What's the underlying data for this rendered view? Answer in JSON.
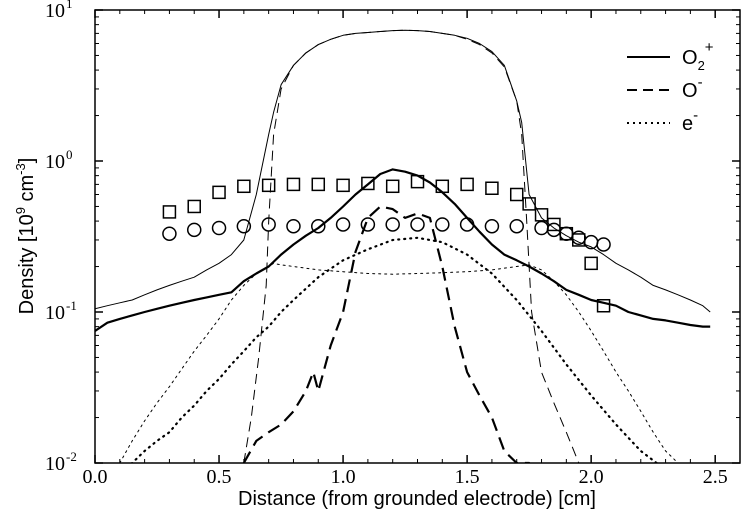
{
  "chart_data": {
    "type": "line",
    "title": "",
    "xlabel": "Distance (from grounded electrode) [cm]",
    "ylabel": {
      "prefix": "Density [10",
      "exp": "9",
      "unit": " cm",
      "unit_exp": "-3",
      "suffix": "]"
    },
    "xlim": [
      0,
      2.6
    ],
    "ylim": [
      0.01,
      10
    ],
    "yscale": "log",
    "xticks": [
      {
        "value": 0,
        "label": "0.0"
      },
      {
        "value": 0.5,
        "label": "0.5"
      },
      {
        "value": 1.0,
        "label": "1.0"
      },
      {
        "value": 1.5,
        "label": "1.5"
      },
      {
        "value": 2.0,
        "label": "2.0"
      },
      {
        "value": 2.5,
        "label": "2.5"
      }
    ],
    "yticks": [
      {
        "value": 0.01,
        "base": "10",
        "exp": "-2"
      },
      {
        "value": 0.1,
        "base": "10",
        "exp": "-1"
      },
      {
        "value": 1,
        "base": "10",
        "exp": "0"
      },
      {
        "value": 10,
        "base": "10",
        "exp": "1"
      }
    ],
    "legend": {
      "position": "top-right",
      "entries": [
        {
          "base": "O",
          "sub": "2",
          "sup": "+",
          "dash": "solid"
        },
        {
          "base": "O",
          "sub": "",
          "sup": "-",
          "dash": "dashed"
        },
        {
          "base": "e",
          "sub": "",
          "sup": "-",
          "dash": "dotted"
        }
      ]
    },
    "series": [
      {
        "name": "O2+ (thin)",
        "dash": "solid",
        "width": 1.0,
        "x": [
          0,
          0.05,
          0.1,
          0.15,
          0.2,
          0.25,
          0.3,
          0.35,
          0.4,
          0.45,
          0.5,
          0.55,
          0.6,
          0.65,
          0.7,
          0.72,
          0.75,
          0.8,
          0.85,
          0.9,
          0.95,
          1.0,
          1.05,
          1.1,
          1.15,
          1.2,
          1.25,
          1.3,
          1.35,
          1.4,
          1.45,
          1.5,
          1.55,
          1.6,
          1.65,
          1.7,
          1.72,
          1.75,
          1.8,
          1.85,
          1.9,
          1.95,
          2.0,
          2.05,
          2.1,
          2.15,
          2.2,
          2.25,
          2.3,
          2.35,
          2.4,
          2.45,
          2.48
        ],
        "y": [
          0.105,
          0.11,
          0.115,
          0.12,
          0.13,
          0.14,
          0.15,
          0.16,
          0.17,
          0.19,
          0.21,
          0.24,
          0.3,
          0.6,
          1.5,
          2.1,
          3.2,
          4.3,
          5.2,
          5.9,
          6.4,
          6.8,
          7.0,
          7.1,
          7.2,
          7.3,
          7.35,
          7.3,
          7.2,
          7.0,
          6.8,
          6.5,
          6.0,
          5.3,
          4.3,
          2.5,
          1.8,
          0.6,
          0.42,
          0.36,
          0.32,
          0.29,
          0.27,
          0.24,
          0.21,
          0.19,
          0.17,
          0.15,
          0.14,
          0.13,
          0.12,
          0.11,
          0.1
        ]
      },
      {
        "name": "O- (thin)",
        "dash": "dashed",
        "width": 1.0,
        "x": [
          0.6,
          0.63,
          0.66,
          0.69,
          0.7,
          0.72,
          0.75,
          0.8,
          0.85,
          0.9,
          0.95,
          1.0,
          1.05,
          1.1,
          1.15,
          1.2,
          1.25,
          1.3,
          1.35,
          1.4,
          1.45,
          1.5,
          1.55,
          1.6,
          1.65,
          1.7,
          1.72,
          1.74,
          1.76,
          1.8,
          1.85,
          1.9,
          1.95
        ],
        "y": [
          0.01,
          0.02,
          0.05,
          0.15,
          0.4,
          1.5,
          3.0,
          4.3,
          5.2,
          5.9,
          6.4,
          6.8,
          7.0,
          7.1,
          7.2,
          7.3,
          7.35,
          7.3,
          7.2,
          7.0,
          6.8,
          6.4,
          5.9,
          5.2,
          4.2,
          2.5,
          1.5,
          0.4,
          0.1,
          0.04,
          0.025,
          0.016,
          0.01
        ]
      },
      {
        "name": "e- (thin)",
        "dash": "dotted",
        "width": 1.0,
        "x": [
          0.1,
          0.15,
          0.2,
          0.25,
          0.3,
          0.35,
          0.4,
          0.45,
          0.5,
          0.55,
          0.6,
          0.65,
          0.7,
          0.72,
          0.75,
          0.8,
          0.9,
          1.0,
          1.1,
          1.2,
          1.3,
          1.4,
          1.5,
          1.6,
          1.7,
          1.75,
          1.8,
          1.85,
          1.9,
          1.95,
          2.0,
          2.05,
          2.1,
          2.15,
          2.2,
          2.25,
          2.3,
          2.35,
          2.4
        ],
        "y": [
          0.01,
          0.014,
          0.019,
          0.025,
          0.032,
          0.042,
          0.055,
          0.07,
          0.09,
          0.12,
          0.15,
          0.18,
          0.2,
          0.21,
          0.205,
          0.2,
          0.19,
          0.185,
          0.18,
          0.178,
          0.18,
          0.182,
          0.185,
          0.19,
          0.2,
          0.205,
          0.19,
          0.16,
          0.13,
          0.1,
          0.075,
          0.055,
          0.04,
          0.03,
          0.022,
          0.016,
          0.012,
          0.01,
          0.008
        ]
      },
      {
        "name": "O2+ (thick)",
        "dash": "solid",
        "width": 2.2,
        "x": [
          0,
          0.05,
          0.1,
          0.15,
          0.2,
          0.25,
          0.3,
          0.35,
          0.4,
          0.45,
          0.5,
          0.55,
          0.6,
          0.65,
          0.7,
          0.75,
          0.8,
          0.85,
          0.9,
          0.95,
          1.0,
          1.05,
          1.1,
          1.15,
          1.2,
          1.25,
          1.3,
          1.35,
          1.4,
          1.45,
          1.5,
          1.55,
          1.6,
          1.65,
          1.7,
          1.75,
          1.8,
          1.85,
          1.9,
          1.95,
          2.0,
          2.05,
          2.1,
          2.15,
          2.2,
          2.25,
          2.3,
          2.35,
          2.4,
          2.45,
          2.48
        ],
        "y": [
          0.075,
          0.085,
          0.09,
          0.095,
          0.1,
          0.105,
          0.11,
          0.115,
          0.12,
          0.125,
          0.13,
          0.135,
          0.16,
          0.18,
          0.2,
          0.24,
          0.28,
          0.32,
          0.36,
          0.42,
          0.5,
          0.6,
          0.7,
          0.82,
          0.88,
          0.85,
          0.8,
          0.72,
          0.62,
          0.52,
          0.42,
          0.34,
          0.28,
          0.24,
          0.22,
          0.2,
          0.18,
          0.16,
          0.14,
          0.13,
          0.12,
          0.115,
          0.11,
          0.1,
          0.095,
          0.09,
          0.088,
          0.085,
          0.082,
          0.08,
          0.08
        ]
      },
      {
        "name": "O- (thick)",
        "dash": "dashed",
        "width": 2.2,
        "x": [
          0.6,
          0.65,
          0.7,
          0.75,
          0.8,
          0.85,
          0.88,
          0.9,
          0.95,
          1.0,
          1.05,
          1.1,
          1.15,
          1.2,
          1.25,
          1.3,
          1.35,
          1.4,
          1.45,
          1.5,
          1.55,
          1.6,
          1.65,
          1.7,
          1.75,
          1.8
        ],
        "y": [
          0.01,
          0.014,
          0.016,
          0.018,
          0.022,
          0.03,
          0.04,
          0.03,
          0.06,
          0.1,
          0.25,
          0.42,
          0.5,
          0.48,
          0.42,
          0.45,
          0.42,
          0.2,
          0.08,
          0.04,
          0.028,
          0.02,
          0.012,
          0.01,
          0.01,
          0.008
        ]
      },
      {
        "name": "e- (thick)",
        "dash": "dotted",
        "width": 2.2,
        "x": [
          0.1,
          0.15,
          0.2,
          0.25,
          0.3,
          0.35,
          0.4,
          0.45,
          0.5,
          0.55,
          0.6,
          0.65,
          0.7,
          0.75,
          0.8,
          0.9,
          1.0,
          1.1,
          1.2,
          1.3,
          1.4,
          1.5,
          1.6,
          1.7,
          1.8,
          1.9,
          2.0,
          2.1,
          2.2,
          2.3,
          2.4
        ],
        "y": [
          0.008,
          0.01,
          0.012,
          0.014,
          0.016,
          0.02,
          0.024,
          0.03,
          0.036,
          0.045,
          0.055,
          0.068,
          0.08,
          0.1,
          0.12,
          0.17,
          0.22,
          0.26,
          0.3,
          0.31,
          0.29,
          0.24,
          0.18,
          0.12,
          0.075,
          0.045,
          0.028,
          0.018,
          0.012,
          0.009,
          0.008
        ]
      }
    ],
    "markers": [
      {
        "name": "squares",
        "shape": "square",
        "x": [
          0.3,
          0.4,
          0.5,
          0.6,
          0.7,
          0.8,
          0.9,
          1.0,
          1.1,
          1.2,
          1.3,
          1.4,
          1.5,
          1.6,
          1.7,
          1.75,
          1.8,
          1.85,
          1.9,
          1.95,
          2.0,
          2.05
        ],
        "y": [
          0.46,
          0.5,
          0.62,
          0.68,
          0.69,
          0.7,
          0.7,
          0.69,
          0.71,
          0.68,
          0.73,
          0.68,
          0.7,
          0.66,
          0.6,
          0.52,
          0.44,
          0.38,
          0.33,
          0.3,
          0.21,
          0.11
        ]
      },
      {
        "name": "circles",
        "shape": "circle",
        "x": [
          0.3,
          0.4,
          0.5,
          0.6,
          0.7,
          0.8,
          0.9,
          1.0,
          1.1,
          1.2,
          1.3,
          1.4,
          1.5,
          1.6,
          1.7,
          1.8,
          1.85,
          1.9,
          1.95,
          2.0,
          2.05
        ],
        "y": [
          0.33,
          0.35,
          0.36,
          0.37,
          0.38,
          0.37,
          0.37,
          0.38,
          0.38,
          0.38,
          0.38,
          0.38,
          0.38,
          0.37,
          0.37,
          0.36,
          0.35,
          0.33,
          0.31,
          0.29,
          0.28
        ]
      }
    ]
  }
}
